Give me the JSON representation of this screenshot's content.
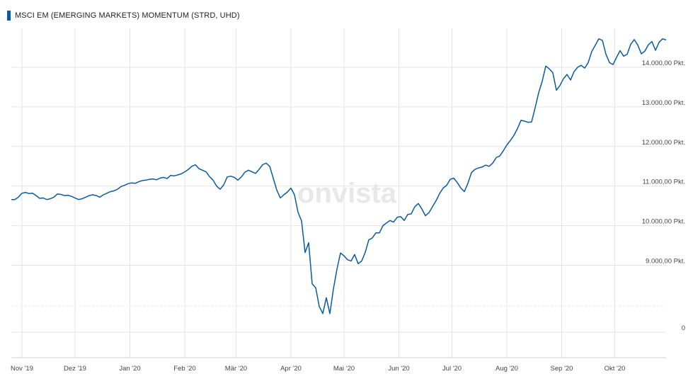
{
  "chart_data": {
    "type": "line",
    "title": "MSCI EM (EMERGING MARKETS) MOMENTUM (STRD, UHD)",
    "watermark": "onvista",
    "line_color": "#0a5aa0",
    "accent_color": "#0a5aa0",
    "grid": true,
    "ylim": [
      0,
      14900
    ],
    "y_ticks": [
      {
        "value": 0,
        "label": "0"
      },
      {
        "value": 9000,
        "label": "9.000,00 Pkt."
      },
      {
        "value": 10000,
        "label": "10.000,00 Pkt."
      },
      {
        "value": 11000,
        "label": "11.000,00 Pkt."
      },
      {
        "value": 12000,
        "label": "12.000,00 Pkt."
      },
      {
        "value": 13000,
        "label": "13.000,00 Pkt."
      },
      {
        "value": 14000,
        "label": "14.000,00 Pkt."
      }
    ],
    "x_ticks": [
      {
        "day": 1,
        "label": "Nov '19"
      },
      {
        "day": 31,
        "label": "Dez '19"
      },
      {
        "day": 62,
        "label": "Jan '20"
      },
      {
        "day": 93,
        "label": "Feb '20"
      },
      {
        "day": 122,
        "label": "Mär '20"
      },
      {
        "day": 153,
        "label": "Apr '20"
      },
      {
        "day": 183,
        "label": "Mai '20"
      },
      {
        "day": 214,
        "label": "Jun '20"
      },
      {
        "day": 244,
        "label": "Jul '20"
      },
      {
        "day": 275,
        "label": "Aug '20"
      },
      {
        "day": 306,
        "label": "Sep '20"
      },
      {
        "day": 336,
        "label": "Okt '20"
      }
    ],
    "x_range": [
      -5,
      365
    ],
    "series": [
      {
        "values": [
          [
            -5,
            10660
          ],
          [
            -3,
            10660
          ],
          [
            -1,
            10720
          ],
          [
            1,
            10820
          ],
          [
            3,
            10840
          ],
          [
            5,
            10810
          ],
          [
            7,
            10820
          ],
          [
            9,
            10760
          ],
          [
            11,
            10690
          ],
          [
            13,
            10700
          ],
          [
            15,
            10660
          ],
          [
            17,
            10680
          ],
          [
            19,
            10720
          ],
          [
            21,
            10800
          ],
          [
            23,
            10790
          ],
          [
            25,
            10760
          ],
          [
            27,
            10770
          ],
          [
            29,
            10740
          ],
          [
            31,
            10700
          ],
          [
            33,
            10660
          ],
          [
            35,
            10680
          ],
          [
            37,
            10720
          ],
          [
            39,
            10760
          ],
          [
            41,
            10780
          ],
          [
            43,
            10760
          ],
          [
            45,
            10720
          ],
          [
            47,
            10780
          ],
          [
            49,
            10820
          ],
          [
            51,
            10860
          ],
          [
            53,
            10880
          ],
          [
            55,
            10920
          ],
          [
            57,
            10990
          ],
          [
            59,
            11020
          ],
          [
            61,
            11060
          ],
          [
            63,
            11080
          ],
          [
            65,
            11070
          ],
          [
            67,
            11110
          ],
          [
            69,
            11140
          ],
          [
            71,
            11150
          ],
          [
            73,
            11170
          ],
          [
            75,
            11180
          ],
          [
            77,
            11160
          ],
          [
            79,
            11200
          ],
          [
            81,
            11220
          ],
          [
            83,
            11190
          ],
          [
            85,
            11270
          ],
          [
            87,
            11260
          ],
          [
            89,
            11280
          ],
          [
            91,
            11310
          ],
          [
            93,
            11360
          ],
          [
            95,
            11420
          ],
          [
            97,
            11500
          ],
          [
            99,
            11540
          ],
          [
            101,
            11440
          ],
          [
            103,
            11400
          ],
          [
            105,
            11360
          ],
          [
            107,
            11240
          ],
          [
            109,
            11150
          ],
          [
            111,
            11000
          ],
          [
            113,
            10920
          ],
          [
            115,
            11030
          ],
          [
            117,
            11230
          ],
          [
            119,
            11250
          ],
          [
            121,
            11220
          ],
          [
            123,
            11150
          ],
          [
            125,
            11230
          ],
          [
            127,
            11350
          ],
          [
            129,
            11400
          ],
          [
            131,
            11360
          ],
          [
            133,
            11320
          ],
          [
            135,
            11420
          ],
          [
            137,
            11540
          ],
          [
            139,
            11580
          ],
          [
            141,
            11500
          ],
          [
            143,
            11200
          ],
          [
            145,
            10900
          ],
          [
            147,
            10700
          ],
          [
            149,
            10780
          ],
          [
            151,
            10850
          ],
          [
            153,
            10950
          ],
          [
            155,
            10780
          ],
          [
            157,
            10340
          ],
          [
            159,
            10120
          ],
          [
            161,
            9320
          ],
          [
            163,
            9570
          ],
          [
            165,
            8530
          ],
          [
            167,
            8430
          ],
          [
            169,
            7960
          ],
          [
            171,
            7780
          ],
          [
            173,
            8180
          ],
          [
            175,
            7780
          ],
          [
            177,
            8400
          ],
          [
            179,
            8900
          ],
          [
            181,
            9310
          ],
          [
            183,
            9240
          ],
          [
            185,
            9140
          ],
          [
            187,
            9110
          ],
          [
            189,
            9270
          ],
          [
            191,
            9040
          ],
          [
            193,
            9110
          ],
          [
            195,
            9330
          ],
          [
            197,
            9640
          ],
          [
            199,
            9690
          ],
          [
            201,
            9820
          ],
          [
            203,
            9820
          ],
          [
            205,
            10000
          ],
          [
            207,
            10070
          ],
          [
            209,
            10130
          ],
          [
            211,
            10090
          ],
          [
            213,
            10210
          ],
          [
            215,
            10230
          ],
          [
            217,
            10130
          ],
          [
            219,
            10280
          ],
          [
            221,
            10300
          ],
          [
            223,
            10480
          ],
          [
            225,
            10560
          ],
          [
            227,
            10420
          ],
          [
            229,
            10250
          ],
          [
            231,
            10330
          ],
          [
            233,
            10480
          ],
          [
            235,
            10630
          ],
          [
            237,
            10810
          ],
          [
            239,
            10950
          ],
          [
            241,
            11020
          ],
          [
            243,
            11170
          ],
          [
            245,
            11200
          ],
          [
            247,
            11090
          ],
          [
            249,
            10950
          ],
          [
            251,
            10860
          ],
          [
            253,
            11070
          ],
          [
            255,
            11340
          ],
          [
            257,
            11420
          ],
          [
            259,
            11460
          ],
          [
            261,
            11480
          ],
          [
            263,
            11530
          ],
          [
            265,
            11500
          ],
          [
            267,
            11580
          ],
          [
            269,
            11720
          ],
          [
            271,
            11760
          ],
          [
            273,
            11890
          ],
          [
            275,
            12040
          ],
          [
            277,
            12150
          ],
          [
            279,
            12280
          ],
          [
            281,
            12450
          ],
          [
            283,
            12660
          ],
          [
            285,
            12640
          ],
          [
            287,
            12610
          ],
          [
            289,
            12620
          ],
          [
            291,
            12980
          ],
          [
            293,
            13360
          ],
          [
            295,
            13650
          ],
          [
            297,
            14030
          ],
          [
            299,
            13960
          ],
          [
            301,
            13860
          ],
          [
            303,
            13420
          ],
          [
            305,
            13540
          ],
          [
            307,
            13710
          ],
          [
            309,
            13820
          ],
          [
            311,
            13680
          ],
          [
            313,
            13890
          ],
          [
            315,
            14000
          ],
          [
            317,
            14050
          ],
          [
            319,
            13980
          ],
          [
            321,
            14120
          ],
          [
            323,
            14400
          ],
          [
            325,
            14560
          ],
          [
            327,
            14720
          ],
          [
            329,
            14680
          ],
          [
            331,
            14330
          ],
          [
            333,
            14120
          ],
          [
            335,
            14070
          ],
          [
            337,
            14250
          ],
          [
            339,
            14420
          ],
          [
            341,
            14280
          ],
          [
            343,
            14330
          ],
          [
            345,
            14580
          ],
          [
            347,
            14700
          ],
          [
            349,
            14560
          ],
          [
            351,
            14340
          ],
          [
            353,
            14410
          ],
          [
            355,
            14570
          ],
          [
            357,
            14650
          ],
          [
            359,
            14430
          ],
          [
            361,
            14630
          ],
          [
            363,
            14720
          ],
          [
            365,
            14690
          ]
        ]
      }
    ]
  }
}
